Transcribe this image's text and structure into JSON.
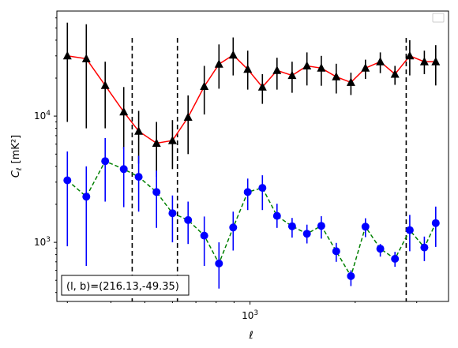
{
  "chart_data": {
    "type": "line",
    "x_scale": "log",
    "y_scale": "log",
    "xlim": [
      280,
      3700
    ],
    "ylim": [
      340,
      68000
    ],
    "xlabel": "ℓ",
    "ylabel_main": "C",
    "ylabel_sub": "ℓ",
    "ylabel_unit": "[mK²]",
    "x_ticks": [
      {
        "value": 1000,
        "base": "10",
        "exp": "3"
      }
    ],
    "y_ticks": [
      {
        "value": 1000,
        "base": "10",
        "exp": "3"
      },
      {
        "value": 10000,
        "base": "10",
        "exp": "4"
      }
    ],
    "grid": false,
    "legend": {
      "placement": "top-right",
      "entries": []
    },
    "annotation": {
      "text": "(l, b)=(216.13,-49.35)",
      "placement": "bottom-left"
    },
    "vlines": [
      460,
      620,
      2800
    ],
    "x": [
      300,
      340,
      385,
      435,
      480,
      540,
      600,
      665,
      740,
      815,
      895,
      985,
      1085,
      1195,
      1320,
      1455,
      1600,
      1765,
      1945,
      2140,
      2360,
      2600,
      2865,
      3155,
      3400
    ],
    "series": [
      {
        "color": "#ff0000",
        "marker": "triangle",
        "marker_color": "#000000",
        "errorbar_color": "#000000",
        "linestyle": "solid",
        "y": [
          30000,
          28500,
          17500,
          10800,
          7600,
          6100,
          6400,
          9800,
          17200,
          25800,
          30500,
          23500,
          17000,
          23000,
          21000,
          25000,
          24000,
          20500,
          18500,
          24000,
          27000,
          21500,
          30000,
          27000,
          27000
        ],
        "y_err_low": [
          21000,
          20500,
          9500,
          5300,
          3400,
          2800,
          2600,
          4800,
          6900,
          9300,
          9500,
          7300,
          4500,
          6800,
          5700,
          7500,
          6600,
          5400,
          3800,
          4300,
          5100,
          3800,
          9000,
          5500,
          9500
        ],
        "y_err_high": [
          25000,
          25000,
          9500,
          6200,
          3400,
          2900,
          2900,
          4800,
          7800,
          11200,
          11500,
          9500,
          4500,
          6000,
          6000,
          7000,
          6000,
          5500,
          3600,
          4000,
          5000,
          3500,
          10000,
          6000,
          9500
        ]
      },
      {
        "color": "#008000",
        "marker": "circle",
        "marker_color": "#0000ff",
        "errorbar_color": "#0000ff",
        "linestyle": "dashed",
        "y": [
          3100,
          2300,
          4400,
          3800,
          3300,
          2500,
          1700,
          1500,
          1130,
          680,
          1310,
          2500,
          2700,
          1620,
          1340,
          1170,
          1350,
          850,
          540,
          1330,
          890,
          740,
          1250,
          910,
          1420
        ],
        "y_err_low": [
          2170,
          1650,
          2300,
          1900,
          1550,
          1200,
          700,
          530,
          480,
          250,
          450,
          700,
          900,
          320,
          250,
          190,
          280,
          150,
          90,
          230,
          120,
          100,
          400,
          200,
          500
        ],
        "y_err_high": [
          2150,
          1700,
          2300,
          1900,
          1550,
          1200,
          650,
          600,
          470,
          320,
          440,
          700,
          700,
          400,
          220,
          210,
          260,
          140,
          60,
          220,
          80,
          100,
          400,
          200,
          500
        ]
      }
    ]
  }
}
